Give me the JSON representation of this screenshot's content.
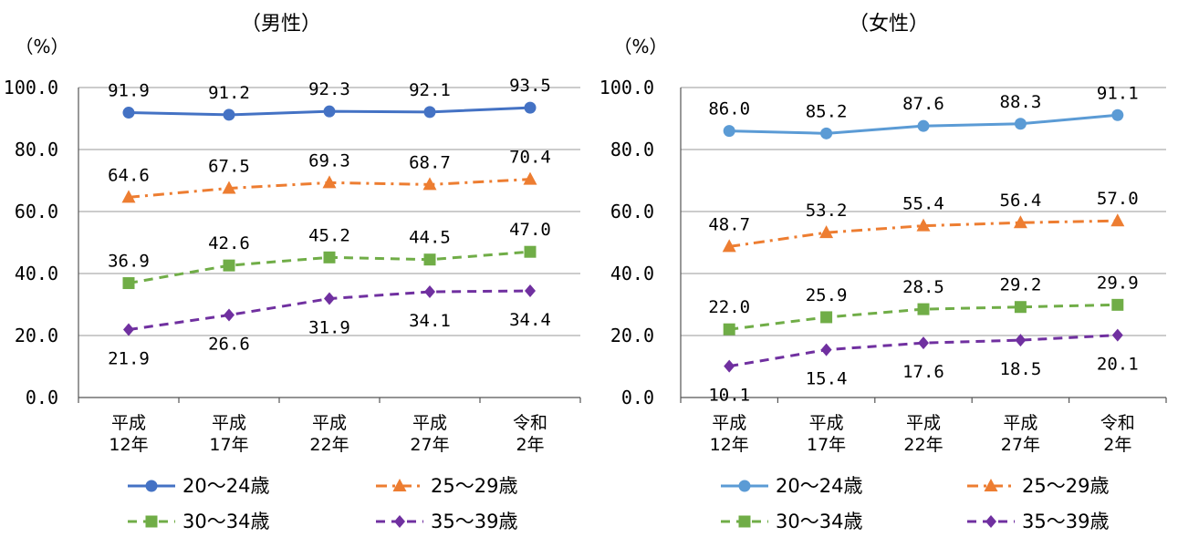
{
  "chart_data": [
    {
      "type": "line",
      "title": "（男性）",
      "unit_label": "（%）",
      "categories": [
        [
          "平成",
          "12年"
        ],
        [
          "平成",
          "17年"
        ],
        [
          "平成",
          "22年"
        ],
        [
          "平成",
          "27年"
        ],
        [
          "令和",
          "2年"
        ]
      ],
      "ylim": [
        0,
        100
      ],
      "yticks": [
        "0.0",
        "20.0",
        "40.0",
        "60.0",
        "80.0",
        "100.0"
      ],
      "grid": true,
      "series": [
        {
          "name": "20～24歳",
          "values": [
            91.9,
            91.2,
            92.3,
            92.1,
            93.5
          ],
          "labels": [
            "91.9",
            "91.2",
            "92.3",
            "92.1",
            "93.5"
          ],
          "color": "#4472C4",
          "marker": "circle",
          "dash": "solid",
          "label_pos": "above"
        },
        {
          "name": "25～29歳",
          "values": [
            64.6,
            67.5,
            69.3,
            68.7,
            70.4
          ],
          "labels": [
            "64.6",
            "67.5",
            "69.3",
            "68.7",
            "70.4"
          ],
          "color": "#ED7D31",
          "marker": "triangle",
          "dash": "dashdot",
          "label_pos": "above"
        },
        {
          "name": "30～34歳",
          "values": [
            36.9,
            42.6,
            45.2,
            44.5,
            47.0
          ],
          "labels": [
            "36.9",
            "42.6",
            "45.2",
            "44.5",
            "47.0"
          ],
          "color": "#70AD47",
          "marker": "square",
          "dash": "dash",
          "label_pos": "above"
        },
        {
          "name": "35～39歳",
          "values": [
            21.9,
            26.6,
            31.9,
            34.1,
            34.4
          ],
          "labels": [
            "21.9",
            "26.6",
            "31.9",
            "34.1",
            "34.4"
          ],
          "color": "#7030A0",
          "marker": "diamond",
          "dash": "dash",
          "label_pos": "below"
        }
      ]
    },
    {
      "type": "line",
      "title": "（女性）",
      "unit_label": "（%）",
      "categories": [
        [
          "平成",
          "12年"
        ],
        [
          "平成",
          "17年"
        ],
        [
          "平成",
          "22年"
        ],
        [
          "平成",
          "27年"
        ],
        [
          "令和",
          "2年"
        ]
      ],
      "ylim": [
        0,
        100
      ],
      "yticks": [
        "0.0",
        "20.0",
        "40.0",
        "60.0",
        "80.0",
        "100.0"
      ],
      "grid": true,
      "series": [
        {
          "name": "20～24歳",
          "values": [
            86.0,
            85.2,
            87.6,
            88.3,
            91.1
          ],
          "labels": [
            "86.0",
            "85.2",
            "87.6",
            "88.3",
            "91.1"
          ],
          "color": "#5B9BD5",
          "marker": "circle",
          "dash": "solid",
          "label_pos": "above"
        },
        {
          "name": "25～29歳",
          "values": [
            48.7,
            53.2,
            55.4,
            56.4,
            57.0
          ],
          "labels": [
            "48.7",
            "53.2",
            "55.4",
            "56.4",
            "57.0"
          ],
          "color": "#ED7D31",
          "marker": "triangle",
          "dash": "dashdot",
          "label_pos": "above"
        },
        {
          "name": "30～34歳",
          "values": [
            22.0,
            25.9,
            28.5,
            29.2,
            29.9
          ],
          "labels": [
            "22.0",
            "25.9",
            "28.5",
            "29.2",
            "29.9"
          ],
          "color": "#70AD47",
          "marker": "square",
          "dash": "dash",
          "label_pos": "above"
        },
        {
          "name": "35～39歳",
          "values": [
            10.1,
            15.4,
            17.6,
            18.5,
            20.1
          ],
          "labels": [
            "10.1",
            "15.4",
            "17.6",
            "18.5",
            "20.1"
          ],
          "color": "#7030A0",
          "marker": "diamond",
          "dash": "dash",
          "label_pos": "below"
        }
      ]
    }
  ]
}
